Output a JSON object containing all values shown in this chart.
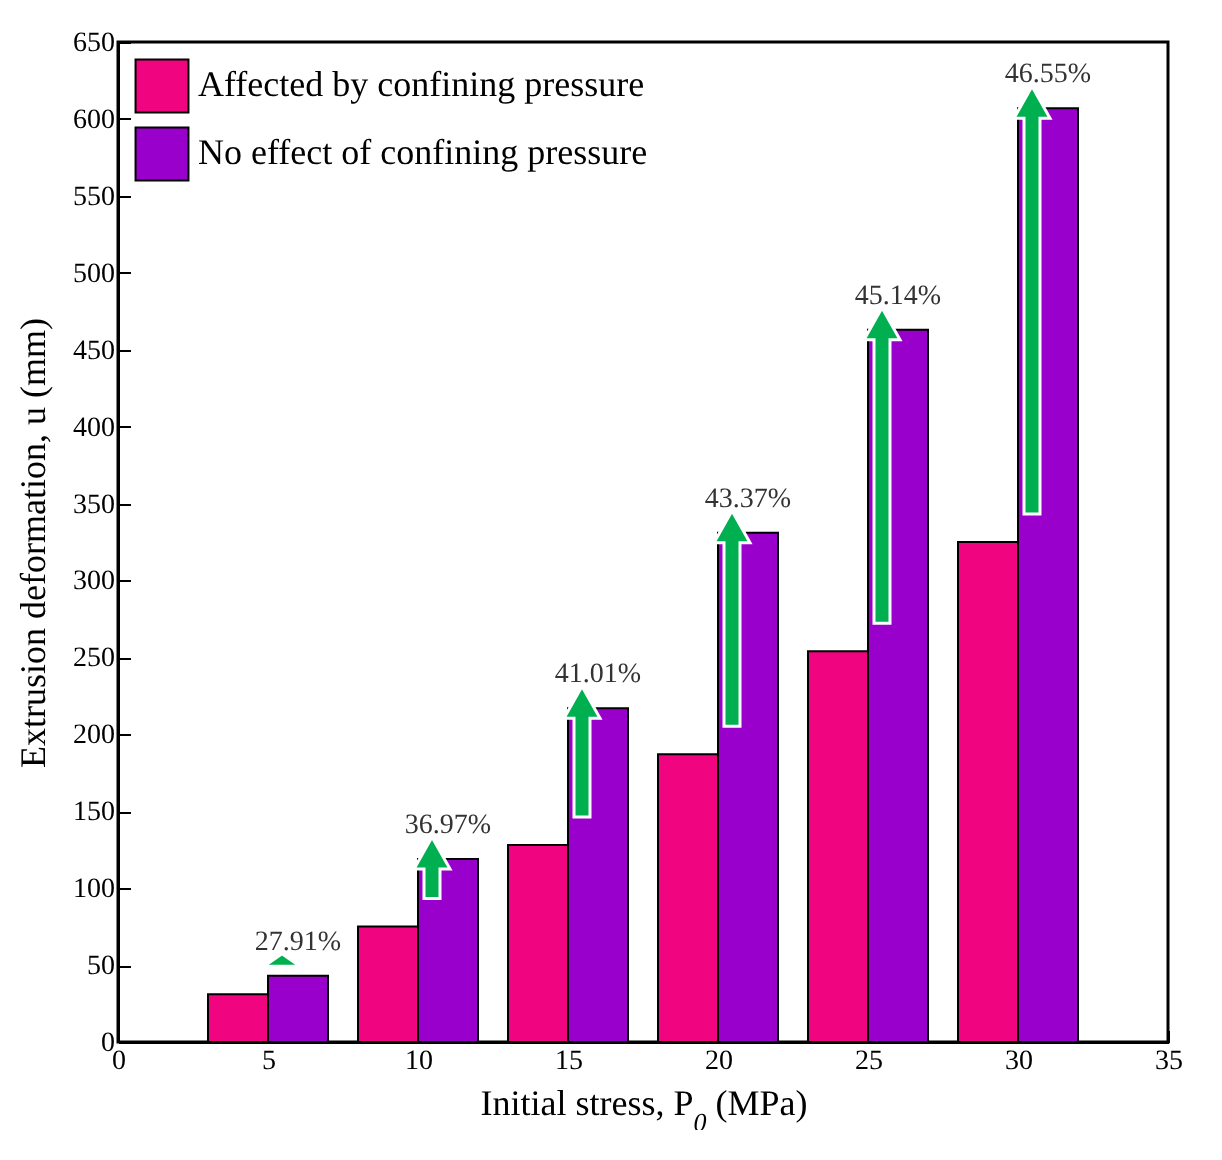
{
  "chart_data": {
    "type": "bar",
    "xlabel": "Initial stress, P$_{0}$ (MPa)",
    "ylabel": "Extrusion deformation, u (mm)",
    "x": [
      5,
      10,
      15,
      20,
      25,
      30
    ],
    "series": [
      {
        "name": "Affected by confining pressure",
        "color": "#f0047f",
        "values": [
          31,
          75,
          128,
          187,
          254,
          325
        ]
      },
      {
        "name": "No effect of confining pressure",
        "color": "#9900cc",
        "values": [
          43,
          119,
          217,
          331,
          463,
          607
        ]
      }
    ],
    "xlim": [
      0,
      35
    ],
    "xticks": [
      0,
      5,
      10,
      15,
      20,
      25,
      30,
      35
    ],
    "ylim": [
      0,
      650
    ],
    "yticks": [
      0,
      50,
      100,
      150,
      200,
      250,
      300,
      350,
      400,
      450,
      500,
      550,
      600,
      650
    ],
    "annotations": [
      {
        "text": "27.91%",
        "x": 6,
        "y": 43
      },
      {
        "text": "36.97%",
        "x": 11,
        "y": 119
      },
      {
        "text": "41.01%",
        "x": 16,
        "y": 217
      },
      {
        "text": "43.37%",
        "x": 21,
        "y": 331
      },
      {
        "text": "45.14%",
        "x": 26,
        "y": 463
      },
      {
        "text": "46.55%",
        "x": 31,
        "y": 607
      }
    ],
    "legend": "top left",
    "grid": false
  }
}
